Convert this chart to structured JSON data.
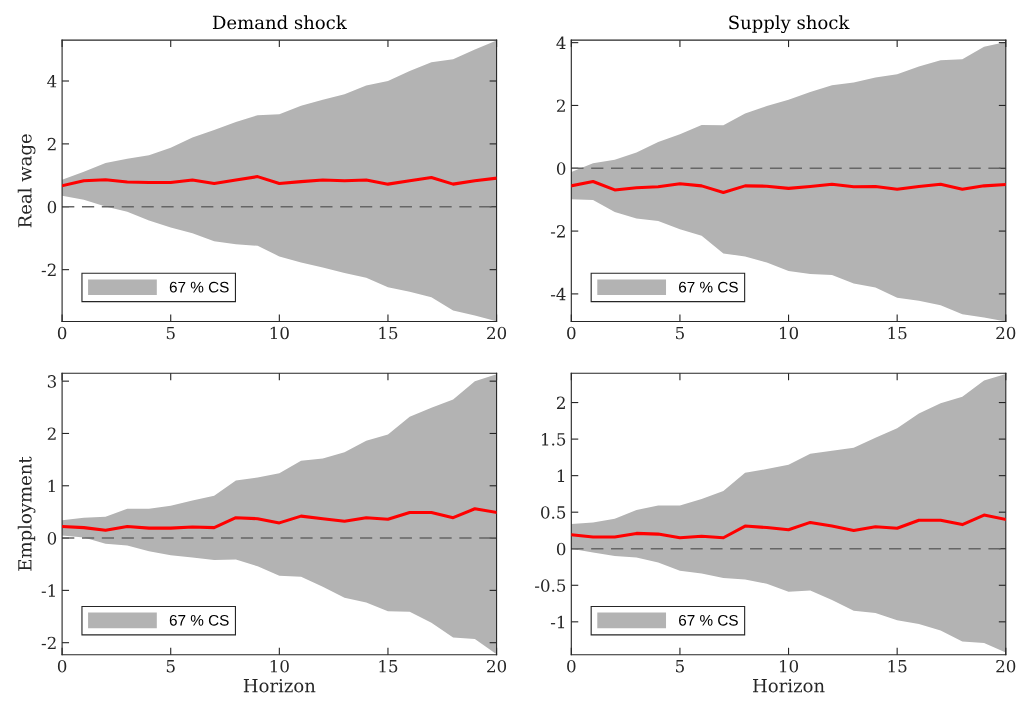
{
  "chart_data": [
    {
      "type": "line",
      "title": "Demand shock",
      "ylabel": "Real wage",
      "x": [
        0,
        1,
        2,
        3,
        4,
        5,
        6,
        7,
        8,
        9,
        10,
        11,
        12,
        13,
        14,
        15,
        16,
        17,
        18,
        19,
        20
      ],
      "xlim": [
        0,
        20
      ],
      "xticks": [
        0,
        5,
        10,
        15,
        20
      ],
      "ylim": [
        -3.65,
        5.3
      ],
      "yticks": [
        -2,
        0,
        2,
        4
      ],
      "legend": "bottom left",
      "grid": false,
      "series": [
        {
          "name": "67 % CS",
          "color": "#b3b3b3",
          "values": [
            null,
            null,
            null,
            null,
            null,
            null,
            null,
            null,
            null,
            null,
            null,
            null,
            null,
            null,
            null,
            null,
            null,
            null,
            null,
            null,
            null
          ],
          "upper": [
            0.86,
            1.11,
            1.39,
            1.53,
            1.64,
            1.88,
            2.2,
            2.44,
            2.7,
            2.91,
            2.94,
            3.21,
            3.4,
            3.58,
            3.86,
            4.0,
            4.32,
            4.6,
            4.69,
            5.0,
            5.29
          ],
          "lower": [
            0.35,
            0.22,
            0.01,
            -0.16,
            -0.44,
            -0.66,
            -0.84,
            -1.1,
            -1.19,
            -1.24,
            -1.58,
            -1.77,
            -1.93,
            -2.11,
            -2.26,
            -2.56,
            -2.7,
            -2.88,
            -3.3,
            -3.46,
            -3.64
          ]
        },
        {
          "color": "#ff0000",
          "values": [
            0.67,
            0.83,
            0.86,
            0.79,
            0.77,
            0.77,
            0.85,
            0.74,
            0.85,
            0.96,
            0.74,
            0.8,
            0.85,
            0.83,
            0.85,
            0.72,
            0.83,
            0.93,
            0.72,
            0.83,
            0.91
          ]
        }
      ],
      "ref_lines": [
        {
          "axis": "y",
          "value": 0,
          "color": "#666666",
          "line_style": "dashed"
        }
      ]
    },
    {
      "type": "line",
      "title": "Supply shock",
      "x": [
        0,
        1,
        2,
        3,
        4,
        5,
        6,
        7,
        8,
        9,
        10,
        11,
        12,
        13,
        14,
        15,
        16,
        17,
        18,
        19,
        20
      ],
      "xlim": [
        0,
        20
      ],
      "xticks": [
        0,
        5,
        10,
        15,
        20
      ],
      "ylim": [
        -4.88,
        4.08
      ],
      "yticks": [
        -4,
        -2,
        0,
        2,
        4
      ],
      "legend": "bottom left",
      "grid": false,
      "series": [
        {
          "name": "67 % CS",
          "color": "#b3b3b3",
          "values": [
            null,
            null,
            null,
            null,
            null,
            null,
            null,
            null,
            null,
            null,
            null,
            null,
            null,
            null,
            null,
            null,
            null,
            null,
            null,
            null,
            null
          ],
          "upper": [
            -0.12,
            0.16,
            0.27,
            0.5,
            0.84,
            1.08,
            1.38,
            1.37,
            1.74,
            1.98,
            2.18,
            2.43,
            2.64,
            2.73,
            2.89,
            2.99,
            3.24,
            3.44,
            3.47,
            3.87,
            4.02
          ],
          "lower": [
            -0.99,
            -1.01,
            -1.39,
            -1.6,
            -1.68,
            -1.94,
            -2.15,
            -2.71,
            -2.81,
            -3.0,
            -3.27,
            -3.37,
            -3.4,
            -3.67,
            -3.8,
            -4.12,
            -4.22,
            -4.36,
            -4.65,
            -4.75,
            -4.88
          ]
        },
        {
          "color": "#ff0000",
          "values": [
            -0.56,
            -0.42,
            -0.69,
            -0.62,
            -0.59,
            -0.49,
            -0.56,
            -0.77,
            -0.56,
            -0.57,
            -0.64,
            -0.58,
            -0.51,
            -0.59,
            -0.58,
            -0.67,
            -0.58,
            -0.51,
            -0.67,
            -0.56,
            -0.52
          ]
        }
      ],
      "ref_lines": [
        {
          "axis": "y",
          "value": 0,
          "color": "#666666",
          "line_style": "dashed"
        }
      ]
    },
    {
      "type": "line",
      "ylabel": "Employment",
      "xlabel": "Horizon",
      "x": [
        0,
        1,
        2,
        3,
        4,
        5,
        6,
        7,
        8,
        9,
        10,
        11,
        12,
        13,
        14,
        15,
        16,
        17,
        18,
        19,
        20
      ],
      "xlim": [
        0,
        20
      ],
      "xticks": [
        0,
        5,
        10,
        15,
        20
      ],
      "ylim": [
        -2.23,
        3.15
      ],
      "yticks": [
        -2,
        -1,
        0,
        1,
        2,
        3
      ],
      "legend": "bottom left",
      "grid": false,
      "series": [
        {
          "name": "67 % CS",
          "color": "#b3b3b3",
          "values": [
            null,
            null,
            null,
            null,
            null,
            null,
            null,
            null,
            null,
            null,
            null,
            null,
            null,
            null,
            null,
            null,
            null,
            null,
            null,
            null,
            null
          ],
          "upper": [
            0.34,
            0.39,
            0.41,
            0.56,
            0.56,
            0.62,
            0.72,
            0.81,
            1.1,
            1.16,
            1.24,
            1.48,
            1.52,
            1.64,
            1.86,
            1.98,
            2.32,
            2.49,
            2.65,
            3.0,
            3.13
          ],
          "lower": [
            0.05,
            0.01,
            -0.11,
            -0.14,
            -0.25,
            -0.33,
            -0.37,
            -0.42,
            -0.41,
            -0.54,
            -0.72,
            -0.74,
            -0.93,
            -1.14,
            -1.23,
            -1.4,
            -1.41,
            -1.62,
            -1.9,
            -1.93,
            -2.22
          ]
        },
        {
          "color": "#ff0000",
          "values": [
            0.22,
            0.2,
            0.15,
            0.22,
            0.19,
            0.19,
            0.21,
            0.2,
            0.39,
            0.37,
            0.29,
            0.42,
            0.37,
            0.32,
            0.39,
            0.36,
            0.49,
            0.49,
            0.39,
            0.56,
            0.49
          ]
        }
      ],
      "ref_lines": [
        {
          "axis": "y",
          "value": 0,
          "color": "#666666",
          "line_style": "dashed"
        }
      ]
    },
    {
      "type": "line",
      "xlabel": "Horizon",
      "x": [
        0,
        1,
        2,
        3,
        4,
        5,
        6,
        7,
        8,
        9,
        10,
        11,
        12,
        13,
        14,
        15,
        16,
        17,
        18,
        19,
        20
      ],
      "xlim": [
        0,
        20
      ],
      "xticks": [
        0,
        5,
        10,
        15,
        20
      ],
      "ylim": [
        -1.45,
        2.4
      ],
      "yticks": [
        -1,
        -0.5,
        0,
        0.5,
        1,
        1.5,
        2
      ],
      "legend": "bottom left",
      "grid": false,
      "series": [
        {
          "name": "67 % CS",
          "color": "#b3b3b3",
          "values": [
            null,
            null,
            null,
            null,
            null,
            null,
            null,
            null,
            null,
            null,
            null,
            null,
            null,
            null,
            null,
            null,
            null,
            null,
            null,
            null,
            null
          ],
          "upper": [
            0.34,
            0.36,
            0.41,
            0.53,
            0.59,
            0.59,
            0.68,
            0.79,
            1.04,
            1.09,
            1.15,
            1.3,
            1.34,
            1.38,
            1.52,
            1.65,
            1.85,
            1.99,
            2.08,
            2.3,
            2.39
          ],
          "lower": [
            0.0,
            -0.05,
            -0.1,
            -0.12,
            -0.19,
            -0.3,
            -0.34,
            -0.4,
            -0.42,
            -0.48,
            -0.59,
            -0.57,
            -0.7,
            -0.85,
            -0.88,
            -0.98,
            -1.03,
            -1.12,
            -1.27,
            -1.29,
            -1.42
          ]
        },
        {
          "color": "#ff0000",
          "values": [
            0.19,
            0.16,
            0.16,
            0.21,
            0.2,
            0.15,
            0.17,
            0.15,
            0.31,
            0.29,
            0.26,
            0.36,
            0.31,
            0.25,
            0.3,
            0.28,
            0.39,
            0.39,
            0.33,
            0.46,
            0.4
          ]
        }
      ],
      "ref_lines": [
        {
          "axis": "y",
          "value": 0,
          "color": "#666666",
          "line_style": "dashed"
        }
      ]
    }
  ]
}
